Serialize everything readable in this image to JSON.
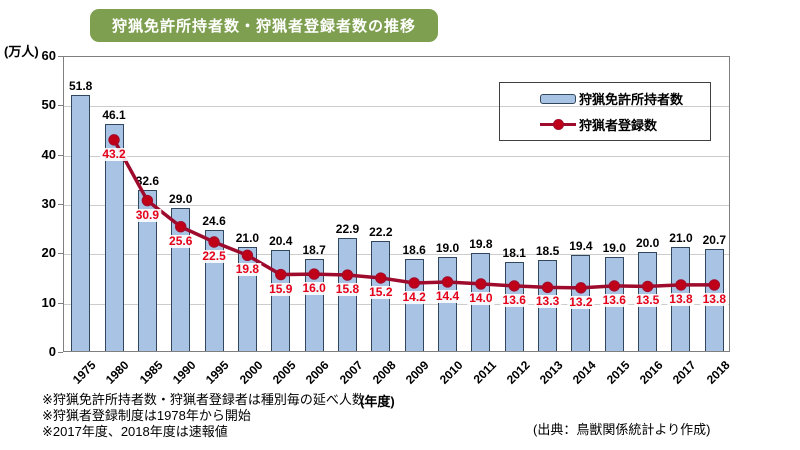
{
  "title": "狩猟免許所持者数・狩猟者登録者数の推移",
  "y_unit": "(万人)",
  "x_unit": "(年度)",
  "legend": {
    "bar_label": "狩猟免許所持者数",
    "line_label": "狩猟者登録数"
  },
  "notes": [
    "※狩猟免許所持者数・狩猟者登録者は種別毎の延べ人数",
    "※狩猟者登録制度は1978年から開始",
    "※2017年度、2018年度は速報値"
  ],
  "source": "(出典：鳥獣関係統計より作成)",
  "colors": {
    "title_bg": "#7d9f4f",
    "bar_fill": "#a9c3e4",
    "bar_border": "#31475e",
    "line": "#9e0b2c",
    "marker": "#c00018",
    "line_label": "#e60019",
    "grid": "#cccccc",
    "plot_border": "#7f7f7f"
  },
  "chart_data": {
    "type": "bar",
    "subtype": "bar-line-combo",
    "title": "狩猟免許所持者数・狩猟者登録者数の推移",
    "xlabel": "(年度)",
    "ylabel": "(万人)",
    "ylim": [
      0,
      60
    ],
    "ytick_step": 10,
    "grid": true,
    "legend_position": "top-right-inside",
    "categories": [
      "1975",
      "1980",
      "1985",
      "1990",
      "1995",
      "2000",
      "2005",
      "2006",
      "2007",
      "2008",
      "2009",
      "2010",
      "2011",
      "2012",
      "2013",
      "2014",
      "2015",
      "2016",
      "2017",
      "2018"
    ],
    "series": [
      {
        "name": "狩猟免許所持者数",
        "type": "bar",
        "values": [
          51.8,
          46.1,
          32.6,
          29.0,
          24.6,
          21.0,
          20.4,
          18.7,
          22.9,
          22.2,
          18.6,
          19.0,
          19.8,
          18.1,
          18.5,
          19.4,
          19.0,
          20.0,
          21.0,
          20.7
        ]
      },
      {
        "name": "狩猟者登録数",
        "type": "line",
        "values": [
          null,
          43.2,
          30.9,
          25.6,
          22.5,
          19.8,
          15.9,
          16.0,
          15.8,
          15.2,
          14.2,
          14.4,
          14.0,
          13.6,
          13.3,
          13.2,
          13.6,
          13.5,
          13.8,
          13.8
        ]
      }
    ]
  }
}
